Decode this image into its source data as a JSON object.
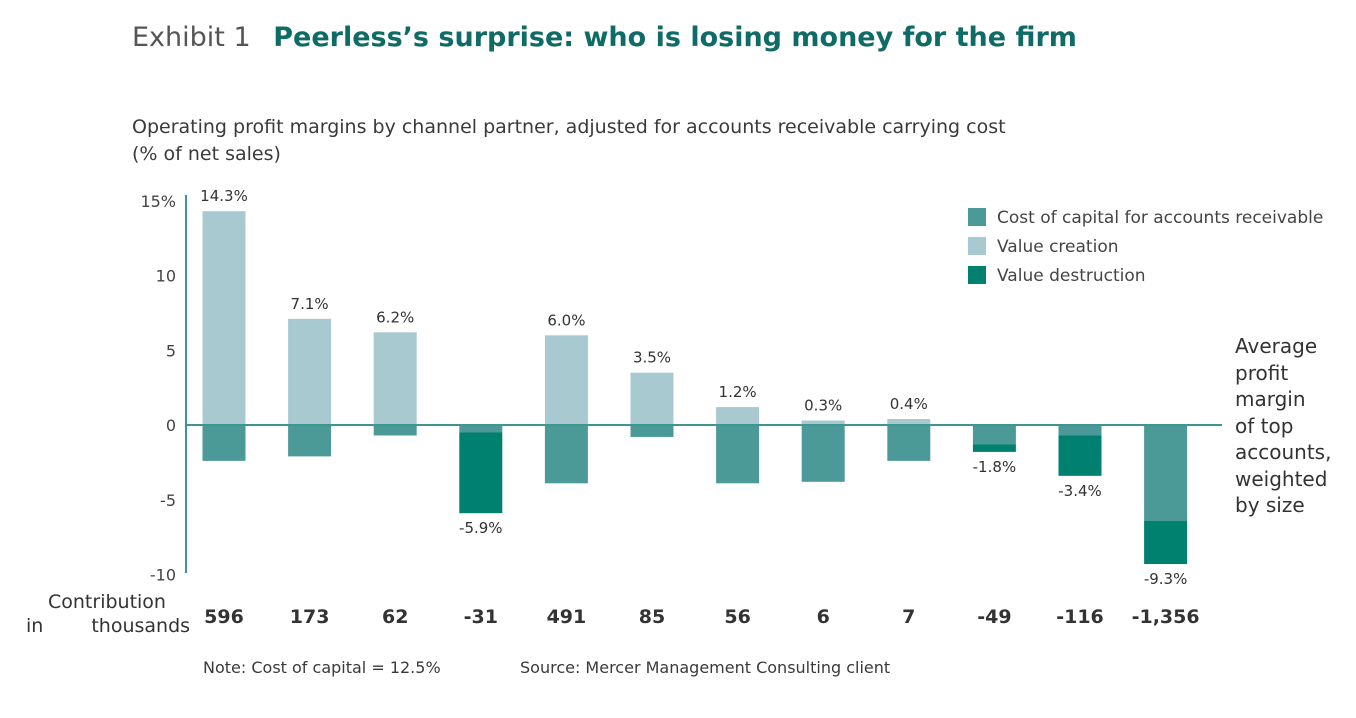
{
  "exhibit_label": "Exhibit 1",
  "title": "Peerless’s surprise: who is losing money for the firm",
  "subtitle_line1": "Operating profit margins by channel partner, adjusted for accounts receivable carrying cost",
  "subtitle_line2": "(% of net sales)",
  "contribution_label_line1": "Contribution",
  "contribution_label_in": "in",
  "contribution_label_thousands": "thousands",
  "average_label": "Average\nprofit\nmargin\nof top\naccounts,\nweighted\nby size",
  "note": "Note: Cost of capital = 12.5%",
  "source": "Source: Mercer Management Consulting client",
  "colors": {
    "cost_of_capital": "#4c9a98",
    "value_creation": "#a9c9d1",
    "value_destruction": "#00806f",
    "axis": "#3f9590"
  },
  "chart_data": {
    "type": "bar",
    "stacked": true,
    "ylim": [
      -10,
      15
    ],
    "yticks": [
      {
        "value": 15,
        "label": "15%"
      },
      {
        "value": 10,
        "label": "10"
      },
      {
        "value": 5,
        "label": "5"
      },
      {
        "value": 0,
        "label": "0"
      },
      {
        "value": -5,
        "label": "-5"
      },
      {
        "value": -10,
        "label": "-10"
      }
    ],
    "legend": [
      {
        "key": "cost_of_capital",
        "label": "Cost of capital for accounts receivable"
      },
      {
        "key": "value_creation",
        "label": "Value creation"
      },
      {
        "key": "value_destruction",
        "label": "Value destruction"
      }
    ],
    "legend_position": "top-right",
    "accounts": [
      {
        "margin": 14.3,
        "margin_label": "14.3%",
        "cost_of_capital": 2.4,
        "contribution": "596"
      },
      {
        "margin": 7.1,
        "margin_label": "7.1%",
        "cost_of_capital": 2.1,
        "contribution": "173"
      },
      {
        "margin": 6.2,
        "margin_label": "6.2%",
        "cost_of_capital": 0.7,
        "contribution": "62"
      },
      {
        "margin": -5.9,
        "margin_label": "-5.9%",
        "cost_of_capital": 0.5,
        "contribution": "-31"
      },
      {
        "margin": 6.0,
        "margin_label": "6.0%",
        "cost_of_capital": 3.9,
        "contribution": "491"
      },
      {
        "margin": 3.5,
        "margin_label": "3.5%",
        "cost_of_capital": 0.8,
        "contribution": "85"
      },
      {
        "margin": 1.2,
        "margin_label": "1.2%",
        "cost_of_capital": 3.9,
        "contribution": "56"
      },
      {
        "margin": 0.3,
        "margin_label": "0.3%",
        "cost_of_capital": 3.8,
        "contribution": "6"
      },
      {
        "margin": 0.4,
        "margin_label": "0.4%",
        "cost_of_capital": 2.4,
        "contribution": "7"
      },
      {
        "margin": -1.8,
        "margin_label": "-1.8%",
        "cost_of_capital": 1.3,
        "contribution": "-49"
      },
      {
        "margin": -3.4,
        "margin_label": "-3.4%",
        "cost_of_capital": 0.7,
        "contribution": "-116"
      },
      {
        "margin": -9.3,
        "margin_label": "-9.3%",
        "cost_of_capital": 6.4,
        "contribution": "-1,356"
      }
    ]
  }
}
